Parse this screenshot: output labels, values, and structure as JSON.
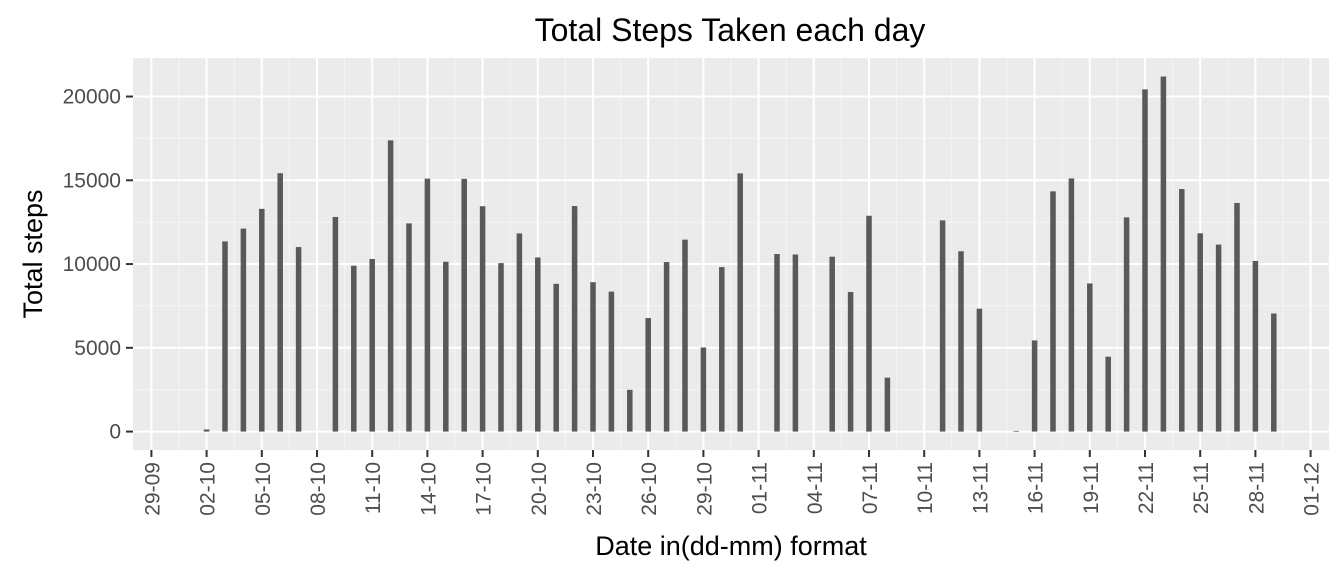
{
  "chart_data": {
    "type": "bar",
    "title": "Total Steps Taken each day",
    "xlabel": "Date in(dd-mm) format",
    "ylabel": "Total steps",
    "ylim": [
      -1100,
      22300
    ],
    "yticks": [
      0,
      5000,
      10000,
      15000,
      20000
    ],
    "ytick_labels": [
      "0",
      "5000",
      "10000",
      "15000",
      "20000"
    ],
    "xlim": [
      "2012-09-28",
      "2012-12-02"
    ],
    "xticks": [
      "2012-09-29",
      "2012-10-02",
      "2012-10-05",
      "2012-10-08",
      "2012-10-11",
      "2012-10-14",
      "2012-10-17",
      "2012-10-20",
      "2012-10-23",
      "2012-10-26",
      "2012-10-29",
      "2012-11-01",
      "2012-11-04",
      "2012-11-07",
      "2012-11-10",
      "2012-11-13",
      "2012-11-16",
      "2012-11-19",
      "2012-11-22",
      "2012-11-25",
      "2012-11-28",
      "2012-12-01"
    ],
    "xtick_labels": [
      "29-09",
      "02-10",
      "05-10",
      "08-10",
      "11-10",
      "14-10",
      "17-10",
      "20-10",
      "23-10",
      "26-10",
      "29-10",
      "01-11",
      "04-11",
      "07-11",
      "10-11",
      "13-11",
      "16-11",
      "19-11",
      "22-11",
      "25-11",
      "28-11",
      "01-12"
    ],
    "grid": true,
    "colors": {
      "bar": "#595959",
      "panel": "#ebebeb",
      "grid_major": "#ffffff",
      "grid_minor": "#f5f5f5",
      "tick": "#333333"
    },
    "x": [
      "2012-10-01",
      "2012-10-02",
      "2012-10-03",
      "2012-10-04",
      "2012-10-05",
      "2012-10-06",
      "2012-10-07",
      "2012-10-08",
      "2012-10-09",
      "2012-10-10",
      "2012-10-11",
      "2012-10-12",
      "2012-10-13",
      "2012-10-14",
      "2012-10-15",
      "2012-10-16",
      "2012-10-17",
      "2012-10-18",
      "2012-10-19",
      "2012-10-20",
      "2012-10-21",
      "2012-10-22",
      "2012-10-23",
      "2012-10-24",
      "2012-10-25",
      "2012-10-26",
      "2012-10-27",
      "2012-10-28",
      "2012-10-29",
      "2012-10-30",
      "2012-10-31",
      "2012-11-01",
      "2012-11-02",
      "2012-11-03",
      "2012-11-04",
      "2012-11-05",
      "2012-11-06",
      "2012-11-07",
      "2012-11-08",
      "2012-11-09",
      "2012-11-10",
      "2012-11-11",
      "2012-11-12",
      "2012-11-13",
      "2012-11-14",
      "2012-11-15",
      "2012-11-16",
      "2012-11-17",
      "2012-11-18",
      "2012-11-19",
      "2012-11-20",
      "2012-11-21",
      "2012-11-22",
      "2012-11-23",
      "2012-11-24",
      "2012-11-25",
      "2012-11-26",
      "2012-11-27",
      "2012-11-28",
      "2012-11-29",
      "2012-11-30"
    ],
    "values": [
      0,
      126,
      11352,
      12116,
      13294,
      15420,
      11015,
      0,
      12811,
      9900,
      10304,
      17382,
      12426,
      15098,
      10139,
      15084,
      13452,
      10056,
      11829,
      10395,
      8821,
      13460,
      8918,
      8355,
      2492,
      6778,
      10119,
      11458,
      5018,
      9819,
      15414,
      0,
      10600,
      10571,
      0,
      10439,
      8334,
      12883,
      3219,
      0,
      0,
      12608,
      10765,
      7336,
      0,
      41,
      5441,
      14339,
      15110,
      8841,
      4472,
      12787,
      20427,
      21194,
      14478,
      11834,
      11162,
      13646,
      10183,
      7047,
      0
    ]
  }
}
